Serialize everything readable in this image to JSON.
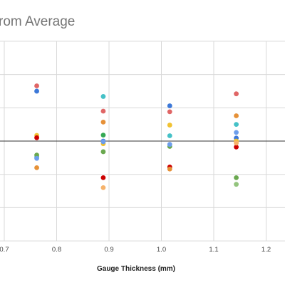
{
  "chart_data": {
    "type": "scatter",
    "title": "rom Average",
    "xlabel": "Gauge Thickness (mm)",
    "ylabel": "",
    "xlim": [
      0.7,
      1.2
    ],
    "ylim": [
      -3,
      3
    ],
    "x_ticks": [
      "0.7",
      "0.8",
      "0.9",
      "1.0",
      "1.1",
      "1.2"
    ],
    "zero_line": true,
    "grid": true,
    "legend": "none",
    "series": [
      {
        "color": "#e06666",
        "points": [
          [
            0.762,
            1.66
          ],
          [
            0.889,
            0.9
          ],
          [
            1.016,
            0.88
          ],
          [
            1.143,
            1.42
          ]
        ]
      },
      {
        "color": "#3c78d8",
        "points": [
          [
            0.762,
            1.5
          ],
          [
            0.889,
            0.0
          ],
          [
            1.016,
            1.06
          ],
          [
            1.143,
            0.09
          ]
        ]
      },
      {
        "color": "#f1c232",
        "points": [
          [
            0.762,
            0.17
          ],
          [
            0.889,
            -0.08
          ],
          [
            1.016,
            0.48
          ],
          [
            1.143,
            0.0
          ]
        ]
      },
      {
        "color": "#cc0000",
        "points": [
          [
            0.762,
            0.1
          ],
          [
            0.889,
            -1.1
          ],
          [
            1.016,
            -0.78
          ],
          [
            1.143,
            -0.18
          ]
        ]
      },
      {
        "color": "#45c1c7",
        "points": [
          [
            0.762,
            -0.48
          ],
          [
            0.889,
            1.34
          ],
          [
            1.016,
            0.16
          ],
          [
            1.143,
            0.5
          ]
        ]
      },
      {
        "color": "#6aa84f",
        "points": [
          [
            0.762,
            -0.42
          ],
          [
            0.889,
            -0.32
          ],
          [
            1.016,
            -0.16
          ],
          [
            1.143,
            -1.1
          ]
        ]
      },
      {
        "color": "#e69138",
        "points": [
          [
            0.762,
            -0.8
          ],
          [
            0.889,
            0.57
          ],
          [
            1.016,
            -0.84
          ],
          [
            1.143,
            0.76
          ]
        ]
      },
      {
        "color": "#6d9eeb",
        "points": [
          [
            0.762,
            -0.52
          ],
          [
            0.889,
            -0.02
          ],
          [
            1.016,
            -0.1
          ],
          [
            1.143,
            0.26
          ]
        ]
      },
      {
        "color": "#f6b26b",
        "points": [
          [
            0.889,
            -1.4
          ],
          [
            1.143,
            -0.06
          ]
        ]
      },
      {
        "color": "#93c47d",
        "points": [
          [
            1.143,
            -1.3
          ]
        ]
      },
      {
        "color": "#34a853",
        "points": [
          [
            0.889,
            0.18
          ]
        ]
      }
    ]
  }
}
